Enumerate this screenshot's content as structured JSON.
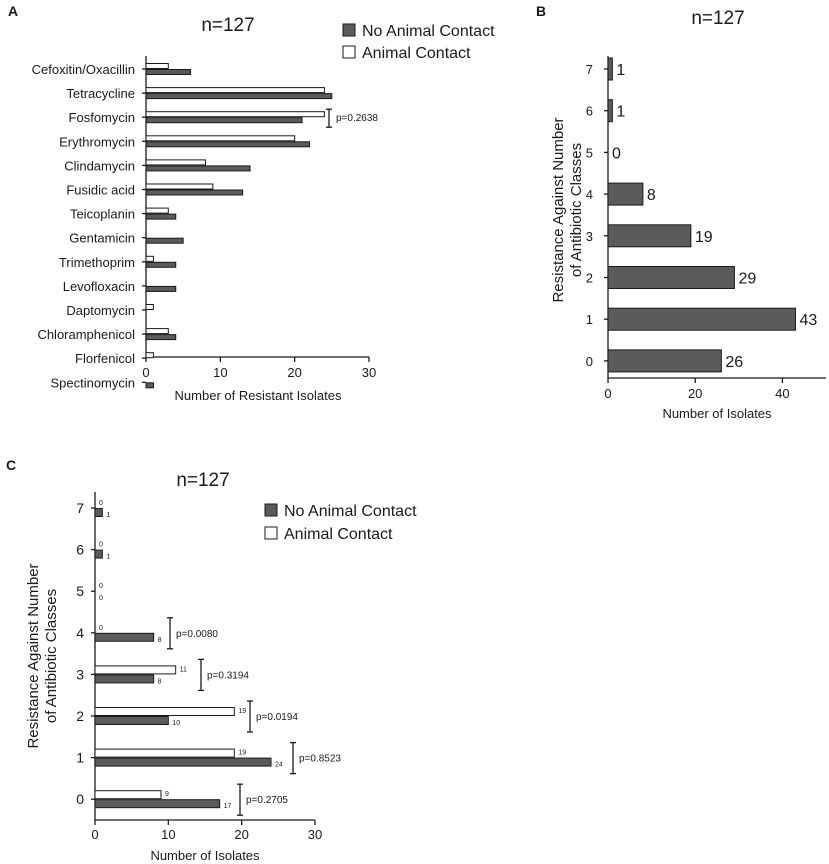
{
  "colors": {
    "no_contact_fill": "#5b5b5b",
    "contact_fill": "#ffffff",
    "single_fill": "#5b5b5b",
    "stroke": "#1a1a1a"
  },
  "chart_data": [
    {
      "panel_label": "A",
      "type": "bar",
      "orientation": "horizontal",
      "title": "n=127",
      "xlabel": "Number of  Resistant Isolates",
      "ylabel": "",
      "xlim": [
        0,
        30
      ],
      "xticks": [
        "0",
        "10",
        "20",
        "30"
      ],
      "categories": [
        "Cefoxitin/Oxacillin",
        "Tetracycline",
        "Fosfomycin",
        "Erythromycin",
        "Clindamycin",
        "Fusidic acid",
        "Teicoplanin",
        "Gentamicin",
        "Trimethoprim",
        "Levofloxacin",
        "Daptomycin",
        "Chloramphenicol",
        "Florfenicol",
        "Spectinomycin"
      ],
      "series": [
        {
          "name": "Animal Contact",
          "values": [
            3,
            24,
            24,
            20,
            8,
            9,
            3,
            0,
            1,
            0,
            1,
            3,
            1,
            0
          ]
        },
        {
          "name": "No Animal Contact",
          "values": [
            6,
            25,
            21,
            22,
            14,
            13,
            4,
            5,
            4,
            4,
            0,
            4,
            0,
            1
          ]
        }
      ],
      "legend": [
        "No Animal Contact",
        "Animal Contact"
      ],
      "legend_position": "top-right",
      "annotations": [
        {
          "category": "Fosfomycin",
          "text": "p=0.2638"
        }
      ]
    },
    {
      "panel_label": "B",
      "type": "bar",
      "orientation": "horizontal",
      "title": "n=127",
      "xlabel": "Number of Isolates",
      "ylabel": "Resistance Against Number\nof Antibiotic Classes",
      "xlim": [
        0,
        50
      ],
      "xticks": [
        "0",
        "20",
        "40"
      ],
      "categories": [
        "7",
        "6",
        "5",
        "4",
        "3",
        "2",
        "1",
        "0"
      ],
      "values": [
        1,
        1,
        0,
        8,
        19,
        29,
        43,
        26
      ],
      "data_labels": [
        "1",
        "1",
        "0",
        "8",
        "19",
        "29",
        "43",
        "26"
      ]
    },
    {
      "panel_label": "C",
      "type": "bar",
      "orientation": "horizontal",
      "title": "n=127",
      "xlabel": "Number of Isolates",
      "ylabel": "Resistance Against Number\nof Antibiotic Classes",
      "xlim": [
        0,
        30
      ],
      "xticks": [
        "0",
        "10",
        "20",
        "30"
      ],
      "categories": [
        "7",
        "6",
        "5",
        "4",
        "3",
        "2",
        "1",
        "0"
      ],
      "series": [
        {
          "name": "Animal Contact",
          "values": [
            0,
            0,
            0,
            0,
            11,
            19,
            19,
            9
          ],
          "labels": [
            "0",
            "0",
            "0",
            "0",
            "11",
            "19",
            "19",
            "9"
          ]
        },
        {
          "name": "No Animal Contact",
          "values": [
            1,
            1,
            0,
            8,
            8,
            10,
            24,
            17
          ],
          "labels": [
            "1",
            "1",
            "0",
            "8",
            "8",
            "10",
            "24",
            "17"
          ]
        }
      ],
      "legend": [
        "No Animal Contact",
        "Animal Contact"
      ],
      "legend_position": "top-right",
      "annotations": [
        {
          "category": "4",
          "text": "p=0.0080"
        },
        {
          "category": "3",
          "text": "p=0.3194"
        },
        {
          "category": "2",
          "text": "p=0.0194"
        },
        {
          "category": "1",
          "text": "p=0.8523"
        },
        {
          "category": "0",
          "text": "p=0.2705"
        }
      ]
    }
  ]
}
